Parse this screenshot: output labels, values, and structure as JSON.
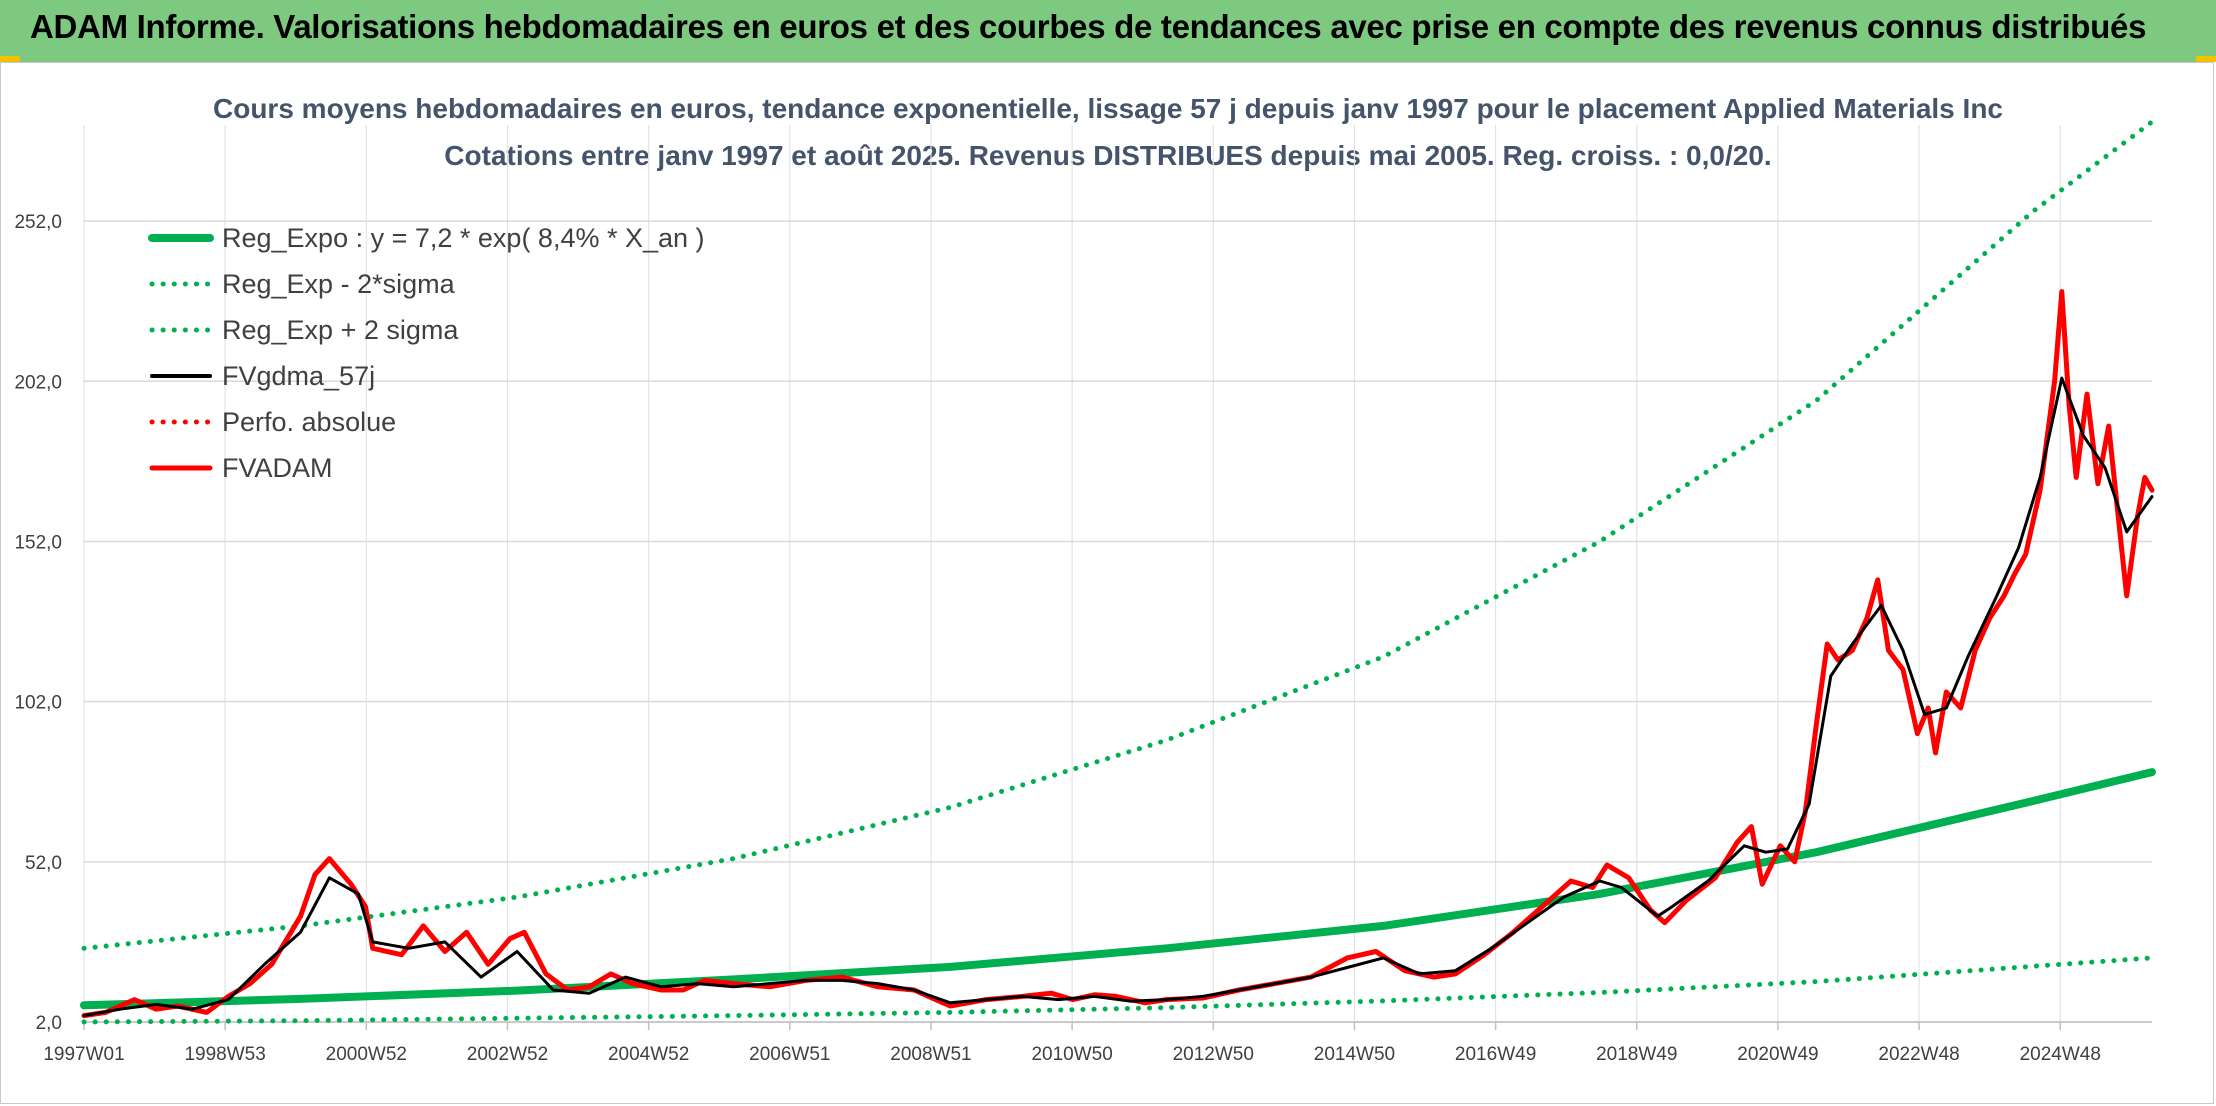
{
  "banner": {
    "title": "ADAM Informe. Valorisations hebdomadaires en euros et des courbes de tendances avec prise en compte des revenus connus distribués",
    "color": "#7dc97f"
  },
  "chart_data": {
    "type": "line",
    "title": "Cours moyens hebdomadaires en euros, tendance exponentielle, lissage 57 j depuis janv 1997 pour le placement Applied Materials Inc",
    "subtitle": "Cotations entre janv 1997 et août 2025. Revenus DISTRIBUES depuis mai 2005. Reg. croiss. : 0,0/20.",
    "xlabel": "",
    "ylabel": "",
    "x_tick_labels": [
      "1997W01",
      "1998W53",
      "2000W52",
      "2002W52",
      "2004W52",
      "2006W51",
      "2008W51",
      "2010W50",
      "2012W50",
      "2014W50",
      "2016W49",
      "2018W49",
      "2020W49",
      "2022W48",
      "2024W48"
    ],
    "y_tick_labels": [
      "2,0",
      "52,0",
      "102,0",
      "152,0",
      "202,0",
      "252,0"
    ],
    "y_ticks": [
      2,
      52,
      102,
      152,
      202,
      252
    ],
    "xlim": [
      1997.0,
      2025.65
    ],
    "ylim": [
      2,
      282
    ],
    "grid": true,
    "legend_position": "top-left",
    "series": [
      {
        "name": "Reg_Expo : y = 7,2 * exp( 8,4% *  X_an )",
        "color": "#00b050",
        "style": "solid",
        "points": [
          [
            1997.0,
            7.2
          ],
          [
            2000.0,
            9.2
          ],
          [
            2003.0,
            11.8
          ],
          [
            2006.0,
            15.3
          ],
          [
            2009.0,
            19.2
          ],
          [
            2012.0,
            25.0
          ],
          [
            2015.0,
            32.0
          ],
          [
            2018.0,
            42.0
          ],
          [
            2021.0,
            55.0
          ],
          [
            2024.0,
            71.0
          ],
          [
            2025.65,
            80.0
          ]
        ]
      },
      {
        "name": "Reg_Exp - 2*sigma",
        "color": "#00b050",
        "style": "dotted",
        "points": [
          [
            1997.0,
            2.0
          ],
          [
            2000.0,
            2.4
          ],
          [
            2003.0,
            3.2
          ],
          [
            2006.0,
            4.0
          ],
          [
            2009.0,
            5.0
          ],
          [
            2012.0,
            6.5
          ],
          [
            2015.0,
            8.6
          ],
          [
            2018.0,
            11.2
          ],
          [
            2021.0,
            14.6
          ],
          [
            2024.0,
            19.4
          ],
          [
            2025.65,
            22.0
          ]
        ]
      },
      {
        "name": "Reg_Exp + 2 sigma",
        "color": "#00b050",
        "style": "dotted",
        "points": [
          [
            1997.0,
            25.0
          ],
          [
            2000.0,
            32.0
          ],
          [
            2003.0,
            41.0
          ],
          [
            2006.0,
            53.0
          ],
          [
            2009.0,
            69.0
          ],
          [
            2012.0,
            90.0
          ],
          [
            2015.0,
            116.0
          ],
          [
            2018.0,
            152.0
          ],
          [
            2021.0,
            196.0
          ],
          [
            2024.0,
            255.0
          ],
          [
            2025.65,
            283.0
          ]
        ]
      },
      {
        "name": "FVgdma_57j",
        "color": "#000000",
        "style": "solid",
        "points": [
          [
            1997.0,
            4.0
          ],
          [
            1997.5,
            6.0
          ],
          [
            1998.0,
            7.5
          ],
          [
            1998.5,
            6.0
          ],
          [
            1999.0,
            9.0
          ],
          [
            1999.5,
            20.0
          ],
          [
            2000.0,
            30.0
          ],
          [
            2000.4,
            47.0
          ],
          [
            2000.8,
            42.0
          ],
          [
            2001.0,
            27.0
          ],
          [
            2001.5,
            25.0
          ],
          [
            2002.0,
            27.0
          ],
          [
            2002.5,
            16.0
          ],
          [
            2003.0,
            24.0
          ],
          [
            2003.5,
            12.0
          ],
          [
            2004.0,
            11.0
          ],
          [
            2004.5,
            16.0
          ],
          [
            2005.0,
            13.0
          ],
          [
            2005.5,
            14.0
          ],
          [
            2006.0,
            13.0
          ],
          [
            2007.0,
            15.0
          ],
          [
            2007.5,
            15.0
          ],
          [
            2008.0,
            14.0
          ],
          [
            2008.5,
            12.0
          ],
          [
            2009.0,
            8.0
          ],
          [
            2009.5,
            9.0
          ],
          [
            2010.0,
            10.0
          ],
          [
            2010.5,
            9.0
          ],
          [
            2011.0,
            10.0
          ],
          [
            2011.5,
            8.5
          ],
          [
            2012.0,
            9.0
          ],
          [
            2012.5,
            10.0
          ],
          [
            2013.0,
            12.0
          ],
          [
            2013.5,
            14.0
          ],
          [
            2014.0,
            16.0
          ],
          [
            2014.5,
            19.0
          ],
          [
            2015.0,
            22.0
          ],
          [
            2015.5,
            17.0
          ],
          [
            2016.0,
            18.0
          ],
          [
            2016.5,
            25.0
          ],
          [
            2017.0,
            33.0
          ],
          [
            2017.5,
            41.0
          ],
          [
            2018.0,
            46.0
          ],
          [
            2018.3,
            44.0
          ],
          [
            2018.8,
            35.0
          ],
          [
            2019.0,
            38.0
          ],
          [
            2019.5,
            46.0
          ],
          [
            2020.0,
            57.0
          ],
          [
            2020.3,
            55.0
          ],
          [
            2020.6,
            56.0
          ],
          [
            2020.9,
            70.0
          ],
          [
            2021.2,
            110.0
          ],
          [
            2021.5,
            120.0
          ],
          [
            2021.9,
            132.0
          ],
          [
            2022.2,
            118.0
          ],
          [
            2022.5,
            98.0
          ],
          [
            2022.8,
            100.0
          ],
          [
            2023.1,
            116.0
          ],
          [
            2023.5,
            135.0
          ],
          [
            2023.8,
            150.0
          ],
          [
            2024.1,
            172.0
          ],
          [
            2024.4,
            203.0
          ],
          [
            2024.7,
            185.0
          ],
          [
            2025.0,
            175.0
          ],
          [
            2025.3,
            155.0
          ],
          [
            2025.65,
            166.0
          ]
        ]
      },
      {
        "name": "Perfo. absolue",
        "color": "#ff0000",
        "style": "dotted",
        "points": []
      },
      {
        "name": "FVADAM",
        "color": "#ff0000",
        "style": "solid",
        "points": [
          [
            1997.0,
            4.0
          ],
          [
            1997.3,
            5.0
          ],
          [
            1997.7,
            9.0
          ],
          [
            1998.0,
            6.0
          ],
          [
            1998.3,
            7.0
          ],
          [
            1998.7,
            5.0
          ],
          [
            1999.0,
            10.0
          ],
          [
            1999.3,
            14.0
          ],
          [
            1999.6,
            20.0
          ],
          [
            2000.0,
            35.0
          ],
          [
            2000.2,
            48.0
          ],
          [
            2000.4,
            53.0
          ],
          [
            2000.7,
            45.0
          ],
          [
            2000.9,
            38.0
          ],
          [
            2001.0,
            25.0
          ],
          [
            2001.4,
            23.0
          ],
          [
            2001.7,
            32.0
          ],
          [
            2002.0,
            24.0
          ],
          [
            2002.3,
            30.0
          ],
          [
            2002.6,
            20.0
          ],
          [
            2002.9,
            28.0
          ],
          [
            2003.1,
            30.0
          ],
          [
            2003.4,
            17.0
          ],
          [
            2003.7,
            12.0
          ],
          [
            2004.0,
            13.0
          ],
          [
            2004.3,
            17.0
          ],
          [
            2004.6,
            14.0
          ],
          [
            2005.0,
            12.0
          ],
          [
            2005.3,
            12.0
          ],
          [
            2005.6,
            15.0
          ],
          [
            2006.0,
            14.0
          ],
          [
            2006.5,
            13.0
          ],
          [
            2007.0,
            15.0
          ],
          [
            2007.5,
            16.0
          ],
          [
            2008.0,
            13.0
          ],
          [
            2008.5,
            12.0
          ],
          [
            2008.8,
            9.0
          ],
          [
            2009.0,
            7.0
          ],
          [
            2009.5,
            9.0
          ],
          [
            2010.0,
            10.0
          ],
          [
            2010.4,
            11.0
          ],
          [
            2010.7,
            9.0
          ],
          [
            2011.0,
            10.5
          ],
          [
            2011.3,
            10.0
          ],
          [
            2011.7,
            8.0
          ],
          [
            2012.0,
            9.0
          ],
          [
            2012.5,
            9.5
          ],
          [
            2013.0,
            12.0
          ],
          [
            2013.5,
            14.0
          ],
          [
            2014.0,
            16.0
          ],
          [
            2014.5,
            22.0
          ],
          [
            2014.9,
            24.0
          ],
          [
            2015.3,
            18.0
          ],
          [
            2015.7,
            16.0
          ],
          [
            2016.0,
            17.0
          ],
          [
            2016.4,
            23.0
          ],
          [
            2016.8,
            30.0
          ],
          [
            2017.2,
            38.0
          ],
          [
            2017.6,
            46.0
          ],
          [
            2017.9,
            44.0
          ],
          [
            2018.1,
            51.0
          ],
          [
            2018.4,
            47.0
          ],
          [
            2018.7,
            37.0
          ],
          [
            2018.9,
            33.0
          ],
          [
            2019.2,
            40.0
          ],
          [
            2019.6,
            47.0
          ],
          [
            2019.9,
            58.0
          ],
          [
            2020.1,
            63.0
          ],
          [
            2020.25,
            45.0
          ],
          [
            2020.5,
            57.0
          ],
          [
            2020.7,
            52.0
          ],
          [
            2020.85,
            68.0
          ],
          [
            2021.0,
            95.0
          ],
          [
            2021.15,
            120.0
          ],
          [
            2021.3,
            115.0
          ],
          [
            2021.5,
            118.0
          ],
          [
            2021.7,
            128.0
          ],
          [
            2021.85,
            140.0
          ],
          [
            2022.0,
            118.0
          ],
          [
            2022.2,
            112.0
          ],
          [
            2022.4,
            92.0
          ],
          [
            2022.55,
            100.0
          ],
          [
            2022.65,
            86.0
          ],
          [
            2022.8,
            105.0
          ],
          [
            2023.0,
            100.0
          ],
          [
            2023.2,
            118.0
          ],
          [
            2023.4,
            128.0
          ],
          [
            2023.6,
            135.0
          ],
          [
            2023.75,
            142.0
          ],
          [
            2023.9,
            148.0
          ],
          [
            2024.1,
            168.0
          ],
          [
            2024.3,
            202.0
          ],
          [
            2024.4,
            230.0
          ],
          [
            2024.5,
            195.0
          ],
          [
            2024.6,
            172.0
          ],
          [
            2024.75,
            198.0
          ],
          [
            2024.9,
            170.0
          ],
          [
            2025.05,
            188.0
          ],
          [
            2025.2,
            156.0
          ],
          [
            2025.3,
            135.0
          ],
          [
            2025.45,
            160.0
          ],
          [
            2025.55,
            172.0
          ],
          [
            2025.65,
            168.0
          ]
        ]
      }
    ]
  }
}
